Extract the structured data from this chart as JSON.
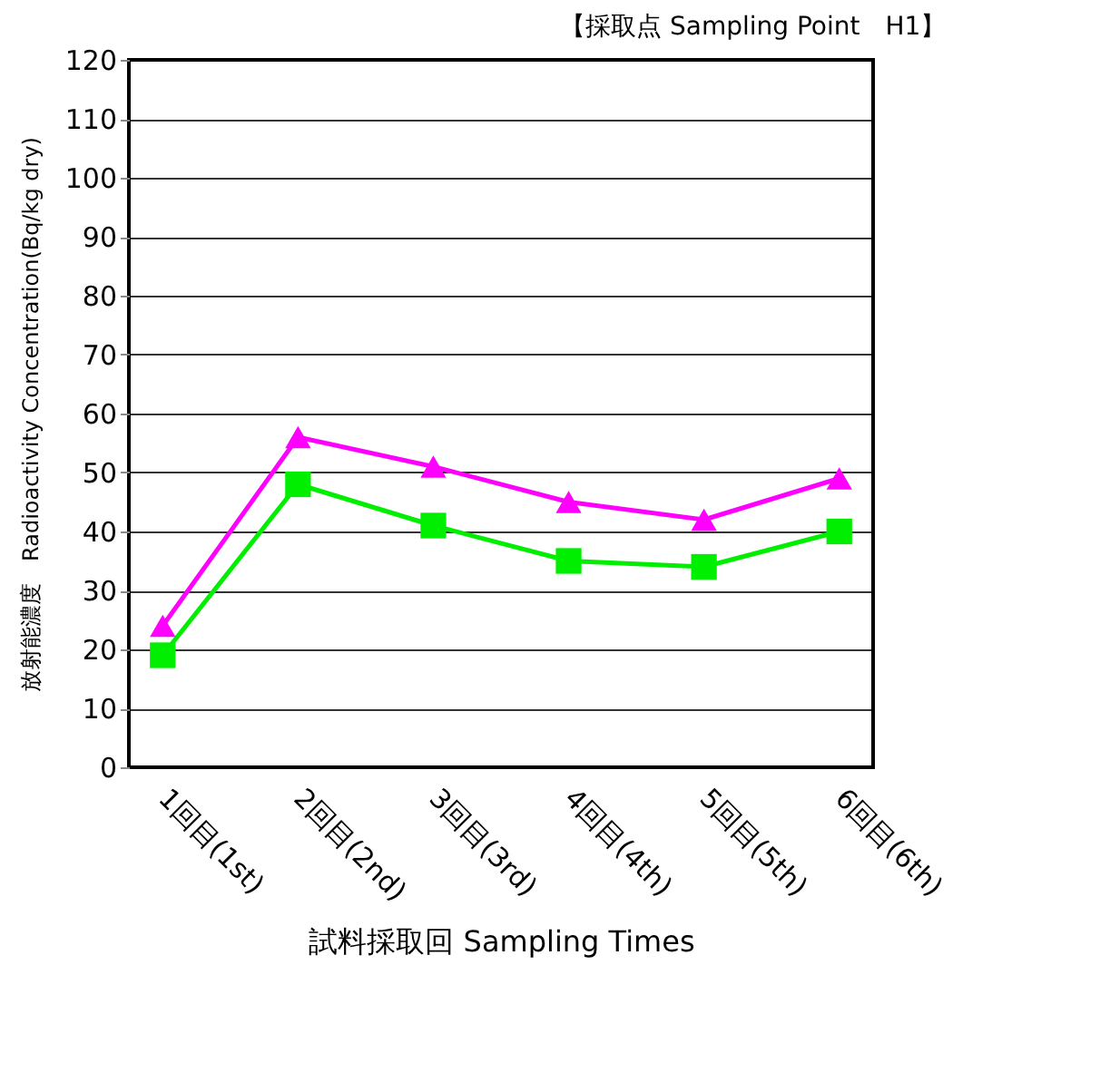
{
  "chart_data": {
    "type": "line",
    "title": "【採取点 Sampling Point　H1】",
    "xlabel": "試料採取回 Sampling Times",
    "ylabel": "放射能濃度　Radioactivity Concentration(Bq/kg dry)",
    "categories": [
      "1回目(1st)",
      "2回目(2nd)",
      "3回目(3rd)",
      "4回目(4th)",
      "5回目(5th)",
      "6回目(6th)"
    ],
    "series": [
      {
        "color": "#ff00ff",
        "marker": "triangle",
        "values": [
          24,
          56,
          51,
          45,
          42,
          49
        ]
      },
      {
        "color": "#00ee00",
        "marker": "square",
        "values": [
          19,
          48,
          41,
          35,
          34,
          40
        ]
      }
    ],
    "ylim": [
      0,
      120
    ],
    "yticks": [
      0,
      10,
      20,
      30,
      40,
      50,
      60,
      70,
      80,
      90,
      100,
      110,
      120
    ],
    "grid": "y",
    "line_style": "solid"
  }
}
